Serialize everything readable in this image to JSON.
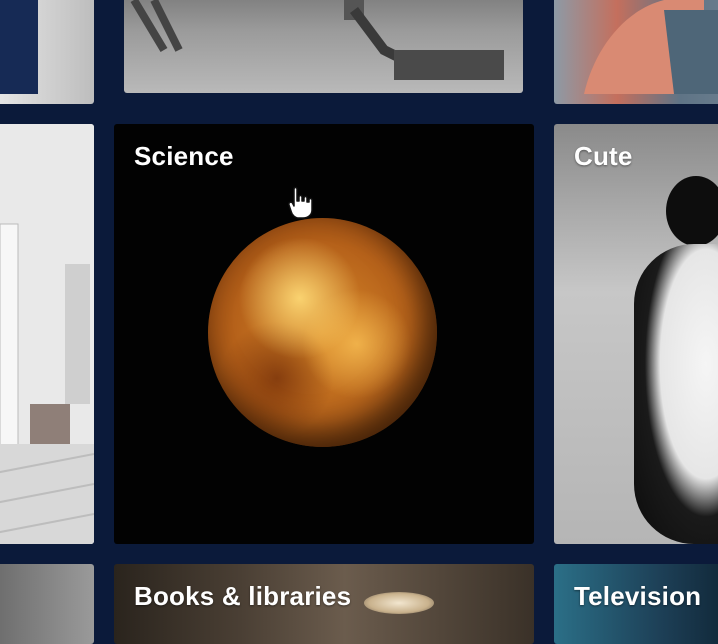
{
  "tiles": {
    "science": {
      "label": "Science"
    },
    "cute": {
      "label": "Cute"
    },
    "books": {
      "label": "Books & libraries"
    },
    "television": {
      "label": "Television"
    }
  },
  "colors": {
    "background": "#0b1a3a",
    "label": "#ffffff"
  },
  "icons": {
    "cursor": "hand-pointer-icon"
  }
}
